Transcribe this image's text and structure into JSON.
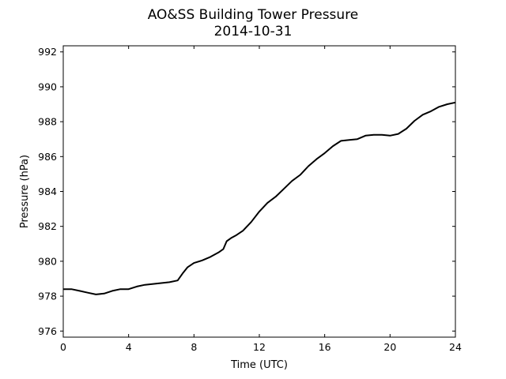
{
  "chart_data": {
    "type": "line",
    "title": "AO&SS Building Tower Pressure",
    "subtitle": "2014-10-31",
    "xlabel": "Time (UTC)",
    "ylabel": "Pressure (hPa)",
    "xlim": [
      0,
      24
    ],
    "ylim": [
      975.65,
      992.35
    ],
    "xticks": [
      "0",
      "4",
      "8",
      "12",
      "16",
      "20",
      "24"
    ],
    "yticks": [
      "976",
      "978",
      "980",
      "982",
      "984",
      "986",
      "988",
      "990",
      "992"
    ],
    "grid": false,
    "line_color": "#000000",
    "series": [
      {
        "x": [
          0,
          0.5,
          1,
          1.5,
          2,
          2.5,
          3,
          3.5,
          4,
          4.5,
          5,
          5.5,
          6,
          6.5,
          7,
          7.3,
          7.6,
          8,
          8.5,
          9,
          9.5,
          9.8,
          10,
          10.3,
          10.6,
          11,
          11.5,
          12,
          12.5,
          13,
          13.5,
          14,
          14.5,
          15,
          15.5,
          16,
          16.5,
          17,
          17.5,
          18,
          18.5,
          19,
          19.5,
          20,
          20.5,
          21,
          21.5,
          22,
          22.5,
          23,
          23.5,
          24
        ],
        "y": [
          978.4,
          978.4,
          978.3,
          978.2,
          978.1,
          978.15,
          978.3,
          978.4,
          978.4,
          978.55,
          978.65,
          978.7,
          978.75,
          978.8,
          978.9,
          979.3,
          979.65,
          979.9,
          980.05,
          980.25,
          980.5,
          980.7,
          981.15,
          981.35,
          981.5,
          981.75,
          982.25,
          982.85,
          983.35,
          983.7,
          984.15,
          984.6,
          984.95,
          985.45,
          985.85,
          986.2,
          986.6,
          986.9,
          986.95,
          987.0,
          987.2,
          987.25,
          987.25,
          987.2,
          987.3,
          987.6,
          988.05,
          988.4,
          988.6,
          988.85,
          989.0,
          989.1
        ]
      }
    ]
  }
}
